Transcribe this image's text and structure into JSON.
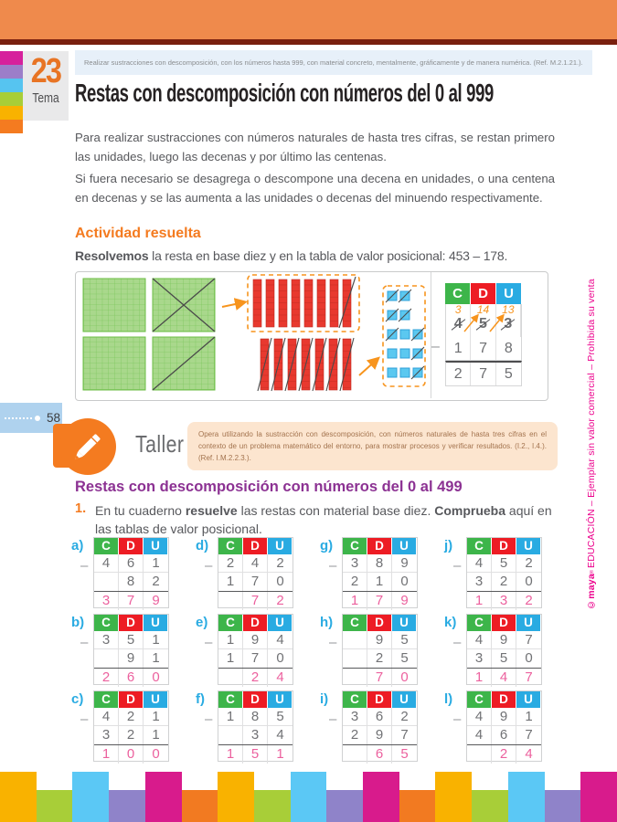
{
  "page": {
    "number": "58"
  },
  "header": {
    "tema_number": "23",
    "tema_label": "Tema",
    "objective": "Realizar sustracciones con descomposición, con los números hasta 999, con material concreto, mentalmente, gráficamente y de manera numérica. (Ref. M.2.1.21.).",
    "title": "Restas con descomposición con números del 0 al 999"
  },
  "intro": {
    "p1": "Para realizar sustracciones con números naturales de hasta tres cifras, se restan primero las unidades, luego las decenas y por último las centenas.",
    "p2": "Si fuera necesario se desagrega o descompone una decena en unidades, o una centena en decenas y se las aumenta a las unidades o decenas del minuendo respectivamente."
  },
  "activity": {
    "heading": "Actividad resuelta",
    "lead_parts": [
      {
        "t": "Resolvemos",
        "b": true
      },
      {
        "t": " la resta en base diez y en la tabla de valor posicional: 453 – 178.",
        "b": false
      }
    ]
  },
  "example_table": {
    "headers": [
      "C",
      "D",
      "U"
    ],
    "carries": [
      "3",
      "14",
      "13"
    ],
    "minuend": [
      "4",
      "5",
      "3"
    ],
    "subtrahend": [
      "1",
      "7",
      "8"
    ],
    "result": [
      "2",
      "7",
      "5"
    ],
    "minus": "–"
  },
  "taller": {
    "label": "Taller",
    "text": "Opera utilizando la sustracción con descomposición, con números naturales de hasta tres cifras en el contexto de un problema matemático del entorno, para mostrar procesos y verificar resultados. (I.2., I.4.). (Ref. I.M.2.2.3.)."
  },
  "exercises": {
    "heading": "Restas con descomposición con números del 0 al 499",
    "item_number": "1.",
    "instruction_parts": [
      {
        "t": "En tu cuaderno ",
        "b": false
      },
      {
        "t": "resuelve",
        "b": true
      },
      {
        "t": " las restas con material base diez. ",
        "b": false
      },
      {
        "t": "Comprueba",
        "b": true
      },
      {
        "t": " aquí en las tablas de valor posicional.",
        "b": false
      }
    ],
    "headers": [
      "C",
      "D",
      "U"
    ],
    "minus": "–",
    "columns": [
      {
        "items": [
          {
            "label": "a)",
            "minuend": [
              "4",
              "6",
              "1"
            ],
            "subtrahend": [
              "",
              "8",
              "2"
            ],
            "result": [
              "3",
              "7",
              "9"
            ]
          },
          {
            "label": "b)",
            "minuend": [
              "3",
              "5",
              "1"
            ],
            "subtrahend": [
              "",
              "9",
              "1"
            ],
            "result": [
              "2",
              "6",
              "0"
            ]
          },
          {
            "label": "c)",
            "minuend": [
              "4",
              "2",
              "1"
            ],
            "subtrahend": [
              "3",
              "2",
              "1"
            ],
            "result": [
              "1",
              "0",
              "0"
            ]
          }
        ]
      },
      {
        "items": [
          {
            "label": "d)",
            "minuend": [
              "2",
              "4",
              "2"
            ],
            "subtrahend": [
              "1",
              "7",
              "0"
            ],
            "result": [
              "",
              "7",
              "2"
            ]
          },
          {
            "label": "e)",
            "minuend": [
              "1",
              "9",
              "4"
            ],
            "subtrahend": [
              "1",
              "7",
              "0"
            ],
            "result": [
              "",
              "2",
              "4"
            ]
          },
          {
            "label": "f)",
            "minuend": [
              "1",
              "8",
              "5"
            ],
            "subtrahend": [
              "",
              "3",
              "4"
            ],
            "result": [
              "1",
              "5",
              "1"
            ]
          }
        ]
      },
      {
        "items": [
          {
            "label": "g)",
            "minuend": [
              "3",
              "8",
              "9"
            ],
            "subtrahend": [
              "2",
              "1",
              "0"
            ],
            "result": [
              "1",
              "7",
              "9"
            ]
          },
          {
            "label": "h)",
            "minuend": [
              "",
              "9",
              "5"
            ],
            "subtrahend": [
              "",
              "2",
              "5"
            ],
            "result": [
              "",
              "7",
              "0"
            ]
          },
          {
            "label": "i)",
            "minuend": [
              "3",
              "6",
              "2"
            ],
            "subtrahend": [
              "2",
              "9",
              "7"
            ],
            "result": [
              "",
              "6",
              "5"
            ]
          }
        ]
      },
      {
        "items": [
          {
            "label": "j)",
            "minuend": [
              "4",
              "5",
              "2"
            ],
            "subtrahend": [
              "3",
              "2",
              "0"
            ],
            "result": [
              "1",
              "3",
              "2"
            ]
          },
          {
            "label": "k)",
            "minuend": [
              "4",
              "9",
              "7"
            ],
            "subtrahend": [
              "3",
              "5",
              "0"
            ],
            "result": [
              "1",
              "4",
              "7"
            ]
          },
          {
            "label": "l)",
            "minuend": [
              "4",
              "9",
              "1"
            ],
            "subtrahend": [
              "4",
              "6",
              "7"
            ],
            "result": [
              "",
              "2",
              "4"
            ]
          }
        ]
      }
    ]
  },
  "sidebar": {
    "brand": "©maya",
    "reg": "®",
    "rest": " EDUCACIÓN – Ejemplar sin valor comercial – Prohibida su venta"
  },
  "colors": {
    "header_orange": "#EF8A4C",
    "maroon": "#7A200F",
    "accent_orange": "#F47B20",
    "purple_heading": "#8C3293",
    "label_blue": "#29ABE2",
    "answer_pink": "#EC619E",
    "cdu_c_green": "#3DB54A",
    "cdu_d_red": "#ED1C24",
    "cdu_u_blue": "#29ABE2",
    "copyright_magenta": "#EC008C",
    "badge_blue": "#AFD2EE",
    "taller_peach": "#FCE5CF",
    "flat_green": "#A9D88C",
    "rod_red": "#E8392F",
    "cube_blue": "#5BC8F0"
  },
  "strips": {
    "top_colors": [
      "#D6219C",
      "#9C7EC9",
      "#56C4F0",
      "#A8CE38",
      "#F9B200",
      "#F47B20"
    ],
    "bottom_bars": [
      {
        "color": "#F9B200",
        "tall": true
      },
      {
        "color": "#A8CE38",
        "tall": false
      },
      {
        "color": "#5BC8F5",
        "tall": true
      },
      {
        "color": "#8F83C9",
        "tall": false
      },
      {
        "color": "#D81B8C",
        "tall": true
      },
      {
        "color": "#F27A21",
        "tall": false
      },
      {
        "color": "#F9B200",
        "tall": true
      },
      {
        "color": "#A8CE38",
        "tall": false
      },
      {
        "color": "#5BC8F5",
        "tall": true
      },
      {
        "color": "#8F83C9",
        "tall": false
      },
      {
        "color": "#D81B8C",
        "tall": true
      },
      {
        "color": "#F27A21",
        "tall": false
      },
      {
        "color": "#F9B200",
        "tall": true
      },
      {
        "color": "#A8CE38",
        "tall": false
      },
      {
        "color": "#5BC8F5",
        "tall": true
      },
      {
        "color": "#8F83C9",
        "tall": false
      },
      {
        "color": "#D81B8C",
        "tall": true
      }
    ]
  }
}
